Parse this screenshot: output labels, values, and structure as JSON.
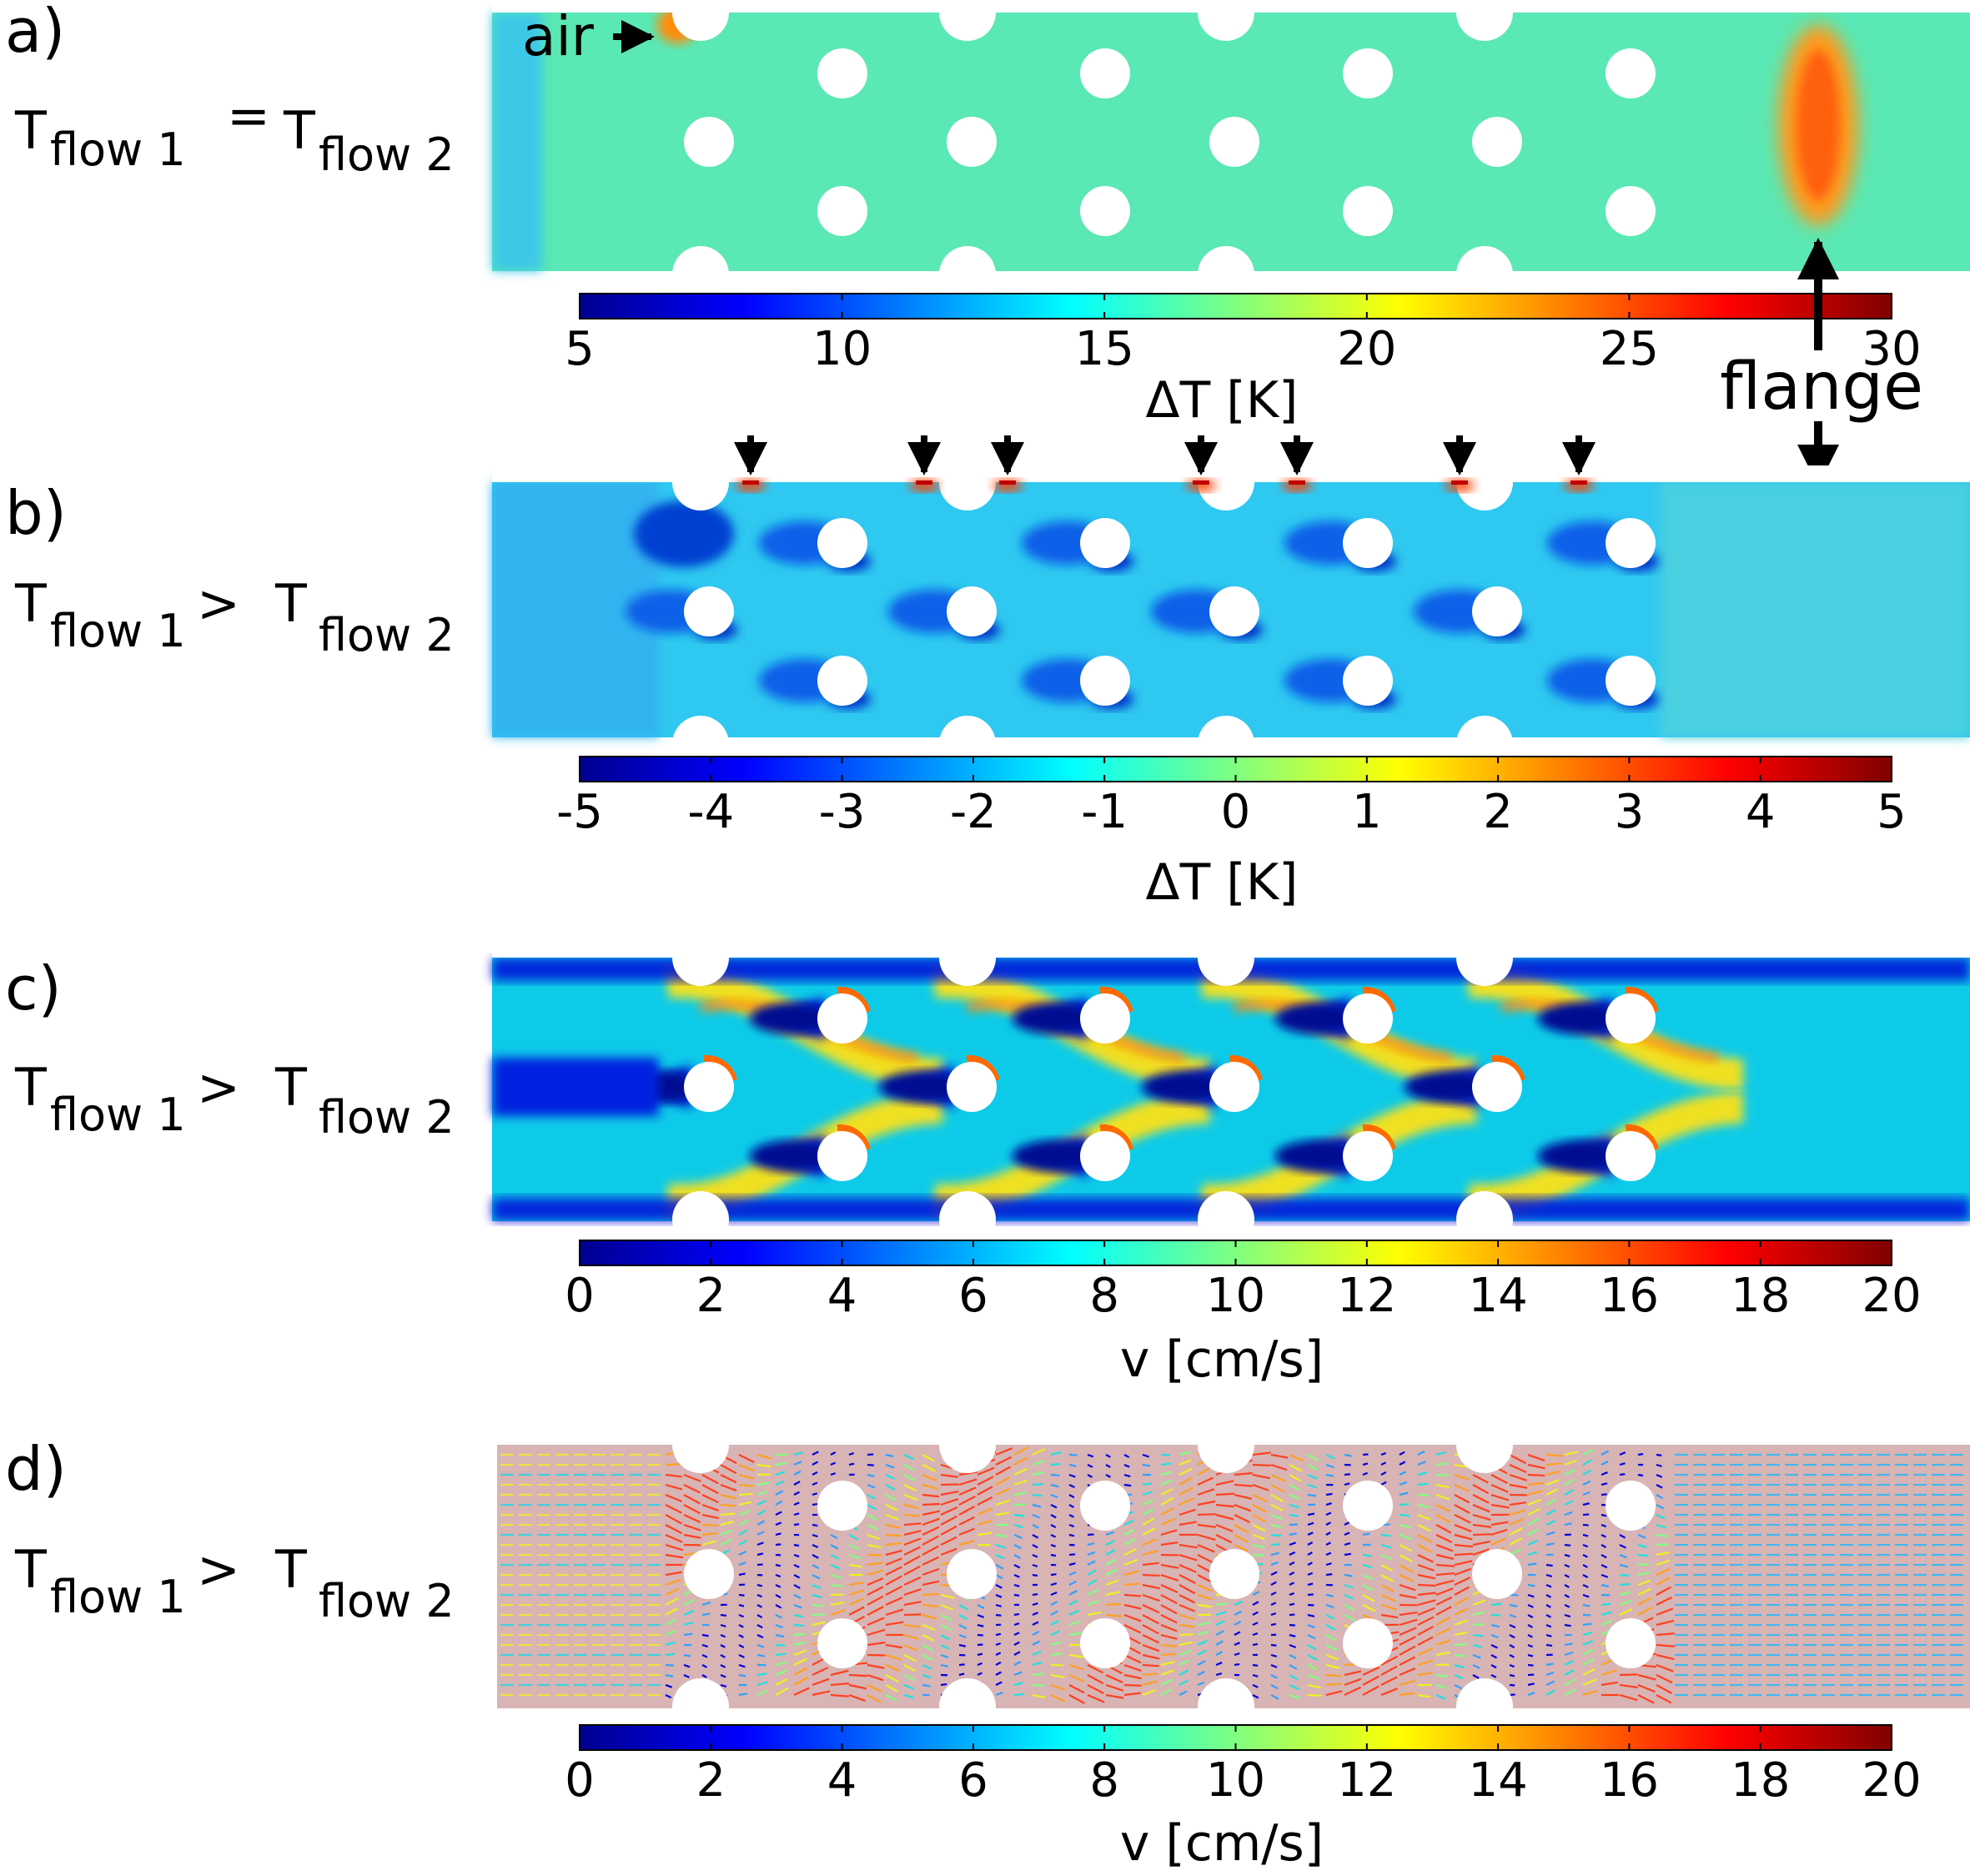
{
  "figure": {
    "colormap": [
      "#00008f",
      "#0000ff",
      "#0080ff",
      "#00ffff",
      "#80ff80",
      "#ffff00",
      "#ff8000",
      "#ff0000",
      "#800000"
    ],
    "obstacle_color": "#ffffff",
    "panels": [
      {
        "letter": "a)",
        "condition": {
          "sub1": "flow 1",
          "relation": "=",
          "sub2": "flow 2"
        },
        "field_kind": "dT_equal",
        "colorbar": {
          "min": 5,
          "max": 30,
          "ticks": [
            "5",
            "10",
            "15",
            "20",
            "25",
            "30"
          ],
          "label": "ΔT [K]"
        },
        "annotations": {
          "air": "air",
          "flange": "flange"
        }
      },
      {
        "letter": "b)",
        "condition": {
          "sub1": "flow 1",
          "relation": ">",
          "sub2": "flow 2"
        },
        "field_kind": "dT_diff",
        "colorbar": {
          "min": -5,
          "max": 5,
          "ticks": [
            "-5",
            "-4",
            "-3",
            "-2",
            "-1",
            "0",
            "1",
            "2",
            "3",
            "4",
            "5"
          ],
          "label": "ΔT [K]"
        }
      },
      {
        "letter": "c)",
        "condition": {
          "sub1": "flow 1",
          "relation": ">",
          "sub2": "flow 2"
        },
        "field_kind": "velocity",
        "colorbar": {
          "min": 0,
          "max": 20,
          "ticks": [
            "0",
            "2",
            "4",
            "6",
            "8",
            "10",
            "12",
            "14",
            "16",
            "18",
            "20"
          ],
          "label": "v [cm/s]"
        }
      },
      {
        "letter": "d)",
        "condition": {
          "sub1": "flow 1",
          "relation": ">",
          "sub2": "flow 2"
        },
        "field_kind": "vectors",
        "colorbar": {
          "min": 0,
          "max": 20,
          "ticks": [
            "0",
            "2",
            "4",
            "6",
            "8",
            "10",
            "12",
            "14",
            "16",
            "18",
            "20"
          ],
          "label": "v [cm/s]"
        }
      }
    ]
  }
}
